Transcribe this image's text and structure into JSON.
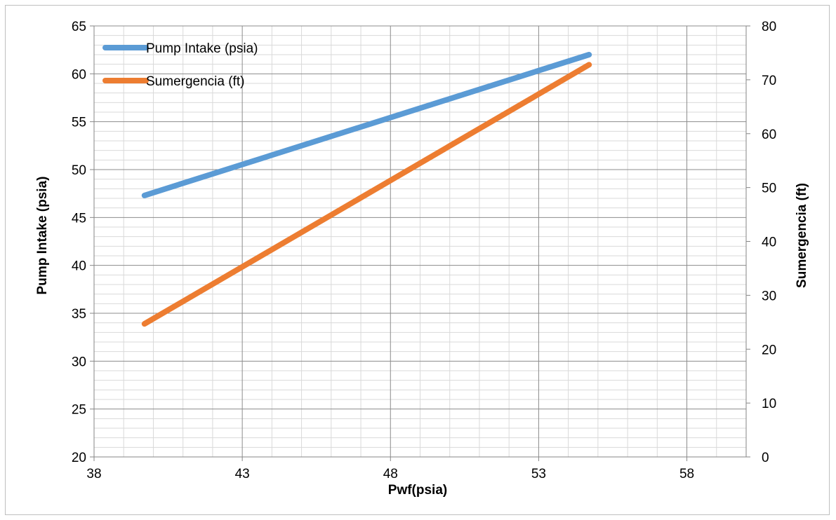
{
  "chart_data": {
    "type": "line",
    "title": "",
    "xlabel": "Pwf(psia)",
    "ylabel": "Pump Intake (psia)",
    "y2label": "Sumergencia (ft)",
    "xlim": [
      38,
      60
    ],
    "ylim": [
      20,
      65
    ],
    "y2lim": [
      0,
      80
    ],
    "x_ticks": [
      38,
      43,
      48,
      53,
      58
    ],
    "y_ticks": [
      20,
      25,
      30,
      35,
      40,
      45,
      50,
      55,
      60,
      65
    ],
    "y2_ticks": [
      0,
      10,
      20,
      30,
      40,
      50,
      60,
      70,
      80
    ],
    "grid": true,
    "legend_position": "top-left",
    "series": [
      {
        "name": "Pump Intake (psia)",
        "axis": "left",
        "color": "#5b9bd5",
        "x": [
          39.7,
          54.7
        ],
        "y": [
          47.3,
          62.0
        ]
      },
      {
        "name": "Sumergencia (ft)",
        "axis": "right",
        "color": "#ed7d31",
        "x": [
          39.7,
          54.7
        ],
        "y": [
          24.7,
          72.8
        ]
      }
    ]
  }
}
